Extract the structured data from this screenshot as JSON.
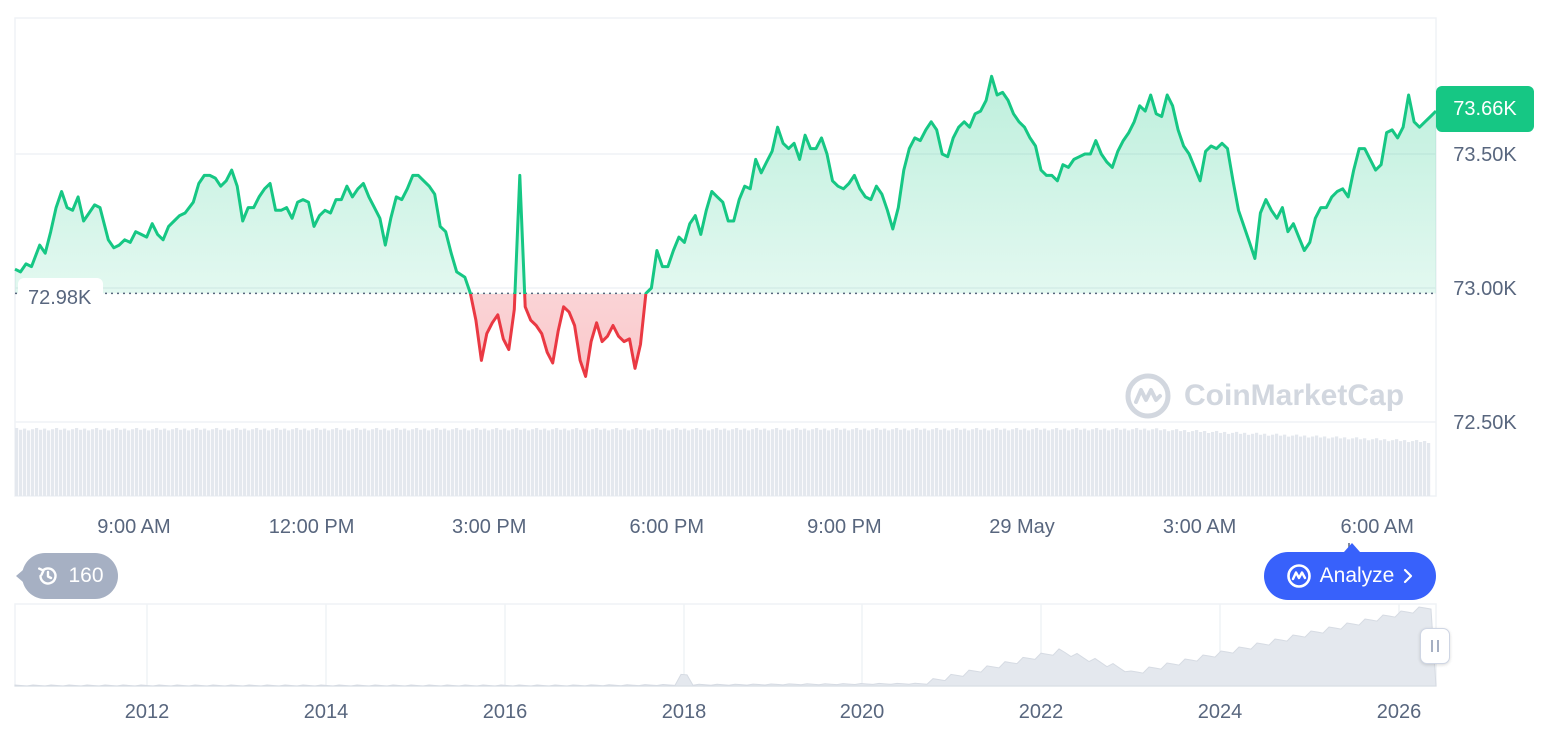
{
  "chart_data": {
    "type": "area",
    "title": "",
    "current_price_label": "73.66K",
    "reference_label": "72.98K",
    "reference_value": 72980,
    "ylim": [
      72350,
      73800
    ],
    "y_ticks": [
      {
        "value": 72500,
        "label": "72.50K"
      },
      {
        "value": 73000,
        "label": "73.00K"
      },
      {
        "value": 73500,
        "label": "73.50K"
      }
    ],
    "x_ticks": [
      {
        "hour": 9,
        "label": "9:00 AM"
      },
      {
        "hour": 12,
        "label": "12:00 PM"
      },
      {
        "hour": 15,
        "label": "3:00 PM"
      },
      {
        "hour": 18,
        "label": "6:00 PM"
      },
      {
        "hour": 21,
        "label": "9:00 PM"
      },
      {
        "hour": 24,
        "label": "29 May"
      },
      {
        "hour": 27,
        "label": "3:00 AM"
      },
      {
        "hour": 30,
        "label": "6:00 AM"
      }
    ],
    "xlim_hours": [
      7.0,
      31.0
    ],
    "colors": {
      "up": "#16c784",
      "down": "#ea3943",
      "grid": "#eff2f5",
      "volume": "#e4e8ee",
      "overview": "#e4e8ee"
    },
    "series": [
      {
        "values": [
          [
            7.0,
            73070
          ],
          [
            7.1,
            73060
          ],
          [
            7.2,
            73090
          ],
          [
            7.3,
            73080
          ],
          [
            7.45,
            73160
          ],
          [
            7.55,
            73130
          ],
          [
            7.65,
            73210
          ],
          [
            7.75,
            73300
          ],
          [
            7.85,
            73360
          ],
          [
            7.95,
            73300
          ],
          [
            8.05,
            73290
          ],
          [
            8.15,
            73340
          ],
          [
            8.25,
            73250
          ],
          [
            8.35,
            73280
          ],
          [
            8.45,
            73310
          ],
          [
            8.55,
            73300
          ],
          [
            8.7,
            73180
          ],
          [
            8.8,
            73150
          ],
          [
            8.9,
            73160
          ],
          [
            9.0,
            73180
          ],
          [
            9.1,
            73170
          ],
          [
            9.2,
            73210
          ],
          [
            9.3,
            73200
          ],
          [
            9.4,
            73190
          ],
          [
            9.5,
            73240
          ],
          [
            9.6,
            73200
          ],
          [
            9.7,
            73180
          ],
          [
            9.8,
            73230
          ],
          [
            9.9,
            73250
          ],
          [
            10.0,
            73270
          ],
          [
            10.1,
            73280
          ],
          [
            10.25,
            73320
          ],
          [
            10.35,
            73390
          ],
          [
            10.45,
            73420
          ],
          [
            10.55,
            73420
          ],
          [
            10.65,
            73410
          ],
          [
            10.75,
            73380
          ],
          [
            10.85,
            73400
          ],
          [
            10.95,
            73440
          ],
          [
            11.05,
            73380
          ],
          [
            11.15,
            73250
          ],
          [
            11.25,
            73300
          ],
          [
            11.35,
            73300
          ],
          [
            11.45,
            73340
          ],
          [
            11.55,
            73370
          ],
          [
            11.65,
            73390
          ],
          [
            11.75,
            73290
          ],
          [
            11.85,
            73290
          ],
          [
            11.95,
            73300
          ],
          [
            12.05,
            73260
          ],
          [
            12.15,
            73320
          ],
          [
            12.25,
            73330
          ],
          [
            12.35,
            73320
          ],
          [
            12.45,
            73230
          ],
          [
            12.55,
            73270
          ],
          [
            12.65,
            73290
          ],
          [
            12.75,
            73280
          ],
          [
            12.85,
            73330
          ],
          [
            12.95,
            73330
          ],
          [
            13.05,
            73380
          ],
          [
            13.15,
            73340
          ],
          [
            13.25,
            73370
          ],
          [
            13.35,
            73390
          ],
          [
            13.45,
            73340
          ],
          [
            13.55,
            73300
          ],
          [
            13.65,
            73260
          ],
          [
            13.75,
            73160
          ],
          [
            13.85,
            73260
          ],
          [
            13.95,
            73340
          ],
          [
            14.05,
            73330
          ],
          [
            14.15,
            73370
          ],
          [
            14.25,
            73420
          ],
          [
            14.35,
            73420
          ],
          [
            14.45,
            73400
          ],
          [
            14.55,
            73380
          ],
          [
            14.65,
            73350
          ],
          [
            14.75,
            73230
          ],
          [
            14.85,
            73210
          ],
          [
            14.95,
            73130
          ],
          [
            15.05,
            73060
          ],
          [
            15.2,
            73040
          ],
          [
            15.3,
            72980
          ],
          [
            15.4,
            72880
          ],
          [
            15.5,
            72730
          ],
          [
            15.6,
            72830
          ],
          [
            15.7,
            72870
          ],
          [
            15.8,
            72900
          ],
          [
            15.9,
            72810
          ],
          [
            16.0,
            72770
          ],
          [
            16.1,
            72920
          ],
          [
            16.2,
            73420
          ],
          [
            16.3,
            72930
          ],
          [
            16.4,
            72880
          ],
          [
            16.5,
            72860
          ],
          [
            16.6,
            72830
          ],
          [
            16.7,
            72760
          ],
          [
            16.8,
            72720
          ],
          [
            16.9,
            72840
          ],
          [
            17.0,
            72930
          ],
          [
            17.1,
            72910
          ],
          [
            17.2,
            72860
          ],
          [
            17.3,
            72730
          ],
          [
            17.4,
            72670
          ],
          [
            17.5,
            72800
          ],
          [
            17.6,
            72870
          ],
          [
            17.7,
            72800
          ],
          [
            17.8,
            72820
          ],
          [
            17.9,
            72860
          ],
          [
            18.0,
            72820
          ],
          [
            18.1,
            72800
          ],
          [
            18.2,
            72810
          ],
          [
            18.3,
            72700
          ],
          [
            18.4,
            72790
          ],
          [
            18.5,
            72980
          ],
          [
            18.6,
            73000
          ],
          [
            18.7,
            73140
          ],
          [
            18.8,
            73080
          ],
          [
            18.9,
            73080
          ],
          [
            19.0,
            73140
          ],
          [
            19.1,
            73190
          ],
          [
            19.2,
            73170
          ],
          [
            19.3,
            73240
          ],
          [
            19.4,
            73270
          ],
          [
            19.5,
            73200
          ],
          [
            19.6,
            73290
          ],
          [
            19.7,
            73360
          ],
          [
            19.8,
            73340
          ],
          [
            19.9,
            73320
          ],
          [
            20.0,
            73250
          ],
          [
            20.1,
            73250
          ],
          [
            20.2,
            73330
          ],
          [
            20.3,
            73380
          ],
          [
            20.4,
            73370
          ],
          [
            20.5,
            73480
          ],
          [
            20.6,
            73430
          ],
          [
            20.7,
            73470
          ],
          [
            20.8,
            73510
          ],
          [
            20.9,
            73600
          ],
          [
            21.0,
            73540
          ],
          [
            21.1,
            73520
          ],
          [
            21.2,
            73540
          ],
          [
            21.3,
            73480
          ],
          [
            21.4,
            73570
          ],
          [
            21.5,
            73520
          ],
          [
            21.6,
            73520
          ],
          [
            21.7,
            73560
          ],
          [
            21.8,
            73500
          ],
          [
            21.9,
            73400
          ],
          [
            22.0,
            73380
          ],
          [
            22.1,
            73370
          ],
          [
            22.2,
            73390
          ],
          [
            22.3,
            73420
          ],
          [
            22.4,
            73370
          ],
          [
            22.5,
            73340
          ],
          [
            22.6,
            73330
          ],
          [
            22.7,
            73380
          ],
          [
            22.8,
            73350
          ],
          [
            22.9,
            73290
          ],
          [
            23.0,
            73220
          ],
          [
            23.1,
            73300
          ],
          [
            23.2,
            73440
          ],
          [
            23.3,
            73520
          ],
          [
            23.4,
            73560
          ],
          [
            23.5,
            73550
          ],
          [
            23.6,
            73590
          ],
          [
            23.7,
            73620
          ],
          [
            23.8,
            73590
          ],
          [
            23.9,
            73500
          ],
          [
            24.0,
            73490
          ],
          [
            24.1,
            73560
          ],
          [
            24.2,
            73600
          ],
          [
            24.3,
            73620
          ],
          [
            24.4,
            73600
          ],
          [
            24.5,
            73650
          ],
          [
            24.6,
            73660
          ],
          [
            24.7,
            73700
          ],
          [
            24.8,
            73790
          ],
          [
            24.9,
            73720
          ],
          [
            25.0,
            73730
          ],
          [
            25.1,
            73700
          ],
          [
            25.2,
            73650
          ],
          [
            25.3,
            73620
          ],
          [
            25.4,
            73600
          ],
          [
            25.5,
            73560
          ],
          [
            25.6,
            73530
          ],
          [
            25.7,
            73440
          ],
          [
            25.8,
            73420
          ],
          [
            25.9,
            73420
          ],
          [
            26.0,
            73400
          ],
          [
            26.1,
            73460
          ],
          [
            26.2,
            73450
          ],
          [
            26.3,
            73480
          ],
          [
            26.4,
            73490
          ],
          [
            26.5,
            73500
          ],
          [
            26.6,
            73500
          ],
          [
            26.7,
            73550
          ],
          [
            26.8,
            73500
          ],
          [
            26.9,
            73470
          ],
          [
            27.0,
            73450
          ],
          [
            27.1,
            73510
          ],
          [
            27.2,
            73550
          ],
          [
            27.3,
            73580
          ],
          [
            27.4,
            73620
          ],
          [
            27.5,
            73680
          ],
          [
            27.6,
            73660
          ],
          [
            27.7,
            73720
          ],
          [
            27.8,
            73650
          ],
          [
            27.9,
            73640
          ],
          [
            28.0,
            73720
          ],
          [
            28.1,
            73680
          ],
          [
            28.2,
            73590
          ],
          [
            28.3,
            73530
          ],
          [
            28.4,
            73500
          ],
          [
            28.5,
            73450
          ],
          [
            28.6,
            73400
          ],
          [
            28.7,
            73510
          ],
          [
            28.8,
            73530
          ],
          [
            28.9,
            73520
          ],
          [
            29.0,
            73540
          ],
          [
            29.1,
            73520
          ],
          [
            29.2,
            73400
          ],
          [
            29.3,
            73290
          ],
          [
            29.4,
            73230
          ],
          [
            29.5,
            73170
          ],
          [
            29.6,
            73110
          ],
          [
            29.7,
            73280
          ],
          [
            29.8,
            73330
          ],
          [
            29.9,
            73290
          ],
          [
            30.0,
            73260
          ],
          [
            30.1,
            73300
          ],
          [
            30.2,
            73210
          ],
          [
            30.3,
            73240
          ],
          [
            30.4,
            73190
          ],
          [
            30.5,
            73140
          ],
          [
            30.6,
            73170
          ],
          [
            30.7,
            73260
          ],
          [
            30.8,
            73300
          ],
          [
            30.9,
            73300
          ],
          [
            31.0,
            73340
          ],
          [
            31.1,
            73360
          ],
          [
            31.2,
            73370
          ],
          [
            31.3,
            73340
          ],
          [
            31.4,
            73440
          ],
          [
            31.5,
            73520
          ],
          [
            31.6,
            73520
          ],
          [
            31.7,
            73480
          ],
          [
            31.8,
            73440
          ],
          [
            31.9,
            73460
          ],
          [
            32.0,
            73580
          ],
          [
            32.1,
            73590
          ],
          [
            32.2,
            73560
          ],
          [
            32.3,
            73600
          ],
          [
            32.4,
            73720
          ],
          [
            32.5,
            73620
          ],
          [
            32.6,
            73600
          ],
          [
            32.7,
            73620
          ],
          [
            32.8,
            73640
          ],
          [
            32.9,
            73660
          ]
        ]
      }
    ],
    "overview": {
      "x_ticks": [
        "2012",
        "2014",
        "2016",
        "2018",
        "2020",
        "2022",
        "2024",
        "2026"
      ]
    }
  },
  "controls": {
    "history_count": "160",
    "analyze_label": "Analyze",
    "watermark": "CoinMarketCap"
  }
}
